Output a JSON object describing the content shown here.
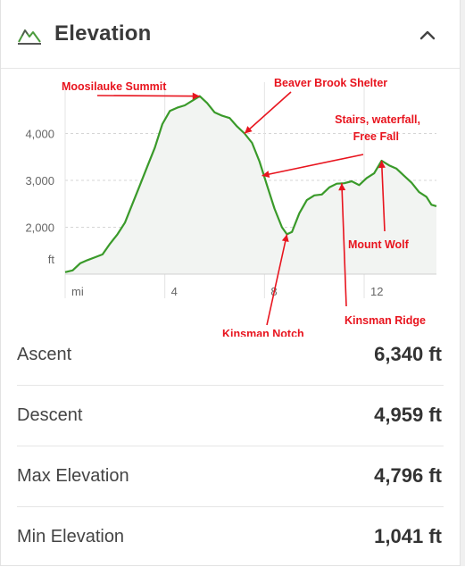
{
  "header": {
    "title": "Elevation",
    "icon": "mountain-icon",
    "collapse_icon": "chevron-up-icon"
  },
  "chart_data": {
    "type": "area",
    "x_unit_label": "mi",
    "y_unit_label": "ft",
    "x_ticks": [
      {
        "value": 0,
        "label": "mi"
      },
      {
        "value": 4,
        "label": "4"
      },
      {
        "value": 8,
        "label": "8"
      },
      {
        "value": 12,
        "label": "12"
      }
    ],
    "y_ticks": [
      {
        "value": 1000,
        "label": "ft"
      },
      {
        "value": 2000,
        "label": "2,000"
      },
      {
        "value": 3000,
        "label": "3,000"
      },
      {
        "value": 4000,
        "label": "4,000"
      }
    ],
    "xlim": [
      0,
      14.9
    ],
    "ylim": [
      1000,
      5000
    ],
    "line_color": "#3a9a2a",
    "fill_color": "#f2f4f2",
    "points": [
      [
        0,
        1041
      ],
      [
        0.3,
        1080
      ],
      [
        0.6,
        1230
      ],
      [
        0.9,
        1300
      ],
      [
        1.2,
        1360
      ],
      [
        1.5,
        1420
      ],
      [
        1.8,
        1650
      ],
      [
        2.1,
        1850
      ],
      [
        2.4,
        2100
      ],
      [
        2.7,
        2500
      ],
      [
        3.0,
        2900
      ],
      [
        3.3,
        3300
      ],
      [
        3.6,
        3700
      ],
      [
        3.9,
        4200
      ],
      [
        4.2,
        4480
      ],
      [
        4.5,
        4550
      ],
      [
        4.8,
        4600
      ],
      [
        5.1,
        4700
      ],
      [
        5.4,
        4796
      ],
      [
        5.7,
        4650
      ],
      [
        6.0,
        4450
      ],
      [
        6.3,
        4380
      ],
      [
        6.6,
        4330
      ],
      [
        6.9,
        4150
      ],
      [
        7.2,
        4000
      ],
      [
        7.5,
        3800
      ],
      [
        7.8,
        3400
      ],
      [
        8.1,
        2900
      ],
      [
        8.4,
        2400
      ],
      [
        8.7,
        2000
      ],
      [
        8.9,
        1850
      ],
      [
        9.1,
        1900
      ],
      [
        9.4,
        2300
      ],
      [
        9.7,
        2580
      ],
      [
        10.0,
        2680
      ],
      [
        10.3,
        2700
      ],
      [
        10.6,
        2850
      ],
      [
        10.9,
        2930
      ],
      [
        11.2,
        2940
      ],
      [
        11.5,
        2980
      ],
      [
        11.8,
        2900
      ],
      [
        12.1,
        3050
      ],
      [
        12.4,
        3150
      ],
      [
        12.7,
        3420
      ],
      [
        13.0,
        3320
      ],
      [
        13.3,
        3250
      ],
      [
        13.6,
        3100
      ],
      [
        13.9,
        2950
      ],
      [
        14.2,
        2750
      ],
      [
        14.5,
        2650
      ],
      [
        14.7,
        2480
      ],
      [
        14.9,
        2450
      ]
    ],
    "annotations": [
      {
        "text": "Moosilauke Summit",
        "x": 5.4,
        "y": 4796
      },
      {
        "text": "Beaver Brook Shelter",
        "x": 7.2,
        "y": 4000
      },
      {
        "text": "Stairs, waterfall,",
        "text2": "Free Fall",
        "x": 7.9,
        "y": 3100
      },
      {
        "text": "Kinsman Notch",
        "x": 8.9,
        "y": 1850
      },
      {
        "text": "Kinsman Ridge",
        "x": 11.1,
        "y": 2940
      },
      {
        "text": "Mount Wolf",
        "x": 12.7,
        "y": 3420
      }
    ],
    "annotation_color": "#e8141e"
  },
  "stats": [
    {
      "label": "Ascent",
      "value": "6,340 ft"
    },
    {
      "label": "Descent",
      "value": "4,959 ft"
    },
    {
      "label": "Max Elevation",
      "value": "4,796 ft"
    },
    {
      "label": "Min Elevation",
      "value": "1,041 ft"
    }
  ]
}
